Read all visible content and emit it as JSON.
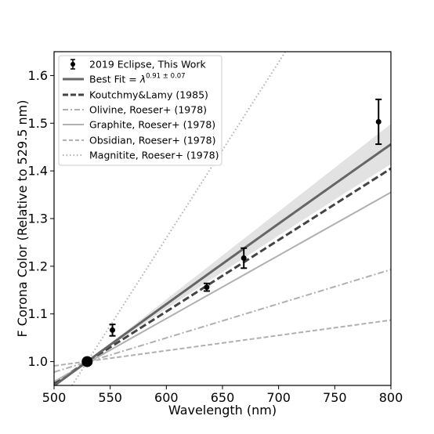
{
  "chart_data": {
    "type": "line",
    "xlabel": "Wavelength (nm)",
    "ylabel": "F Corona Color (Relative to 529.5 nm)",
    "xlim": [
      500,
      800
    ],
    "ylim": [
      0.95,
      1.65
    ],
    "xticks": [
      500,
      550,
      600,
      650,
      700,
      750,
      800
    ],
    "yticks": [
      1.0,
      1.1,
      1.2,
      1.3,
      1.4,
      1.5,
      1.6
    ],
    "xtick_labels": [
      "500",
      "550",
      "600",
      "650",
      "700",
      "750",
      "800"
    ],
    "ytick_labels": [
      "1.0",
      "1.1",
      "1.2",
      "1.3",
      "1.4",
      "1.5",
      "1.6"
    ],
    "grid": false,
    "legend_position": "top-left",
    "reference_point": {
      "x": 529.5,
      "y": 1.0
    },
    "observations": {
      "name": "2019 Eclipse, This Work",
      "points": [
        {
          "x": 552,
          "y": 1.066,
          "err": 0.012
        },
        {
          "x": 636,
          "y": 1.156,
          "err": 0.008
        },
        {
          "x": 669,
          "y": 1.217,
          "err": 0.021
        },
        {
          "x": 789,
          "y": 1.503,
          "err": 0.047
        }
      ]
    },
    "best_fit": {
      "name_prefix": "Best Fit = ",
      "name_symbol": "λ",
      "name_exponent": "0.91 ± 0.07",
      "exponent": 0.91,
      "exponent_error": 0.07,
      "color": "#666666"
    },
    "models": [
      {
        "name": "Koutchmy&Lamy (1985)",
        "style": "dashed-bold",
        "color": "#444444",
        "points": [
          [
            500,
            0.955
          ],
          [
            800,
            1.405
          ]
        ]
      },
      {
        "name": "Olivine, Roeser+ (1978)",
        "style": "dashdot",
        "color": "#b0b0b0",
        "points": [
          [
            500,
            0.978
          ],
          [
            800,
            1.193
          ]
        ]
      },
      {
        "name": "Graphite, Roeser+ (1978)",
        "style": "solid",
        "color": "#b0b0b0",
        "points": [
          [
            500,
            0.958
          ],
          [
            800,
            1.355
          ]
        ]
      },
      {
        "name": "Obsidian, Roeser+ (1978)",
        "style": "dashed",
        "color": "#b0b0b0",
        "points": [
          [
            500,
            0.991
          ],
          [
            800,
            1.087
          ]
        ]
      },
      {
        "name": "Magnitite, Roeser+ (1978)",
        "style": "dotted",
        "color": "#b0b0b0",
        "points": [
          [
            516,
            0.95
          ],
          [
            706,
            1.65
          ]
        ]
      }
    ]
  }
}
